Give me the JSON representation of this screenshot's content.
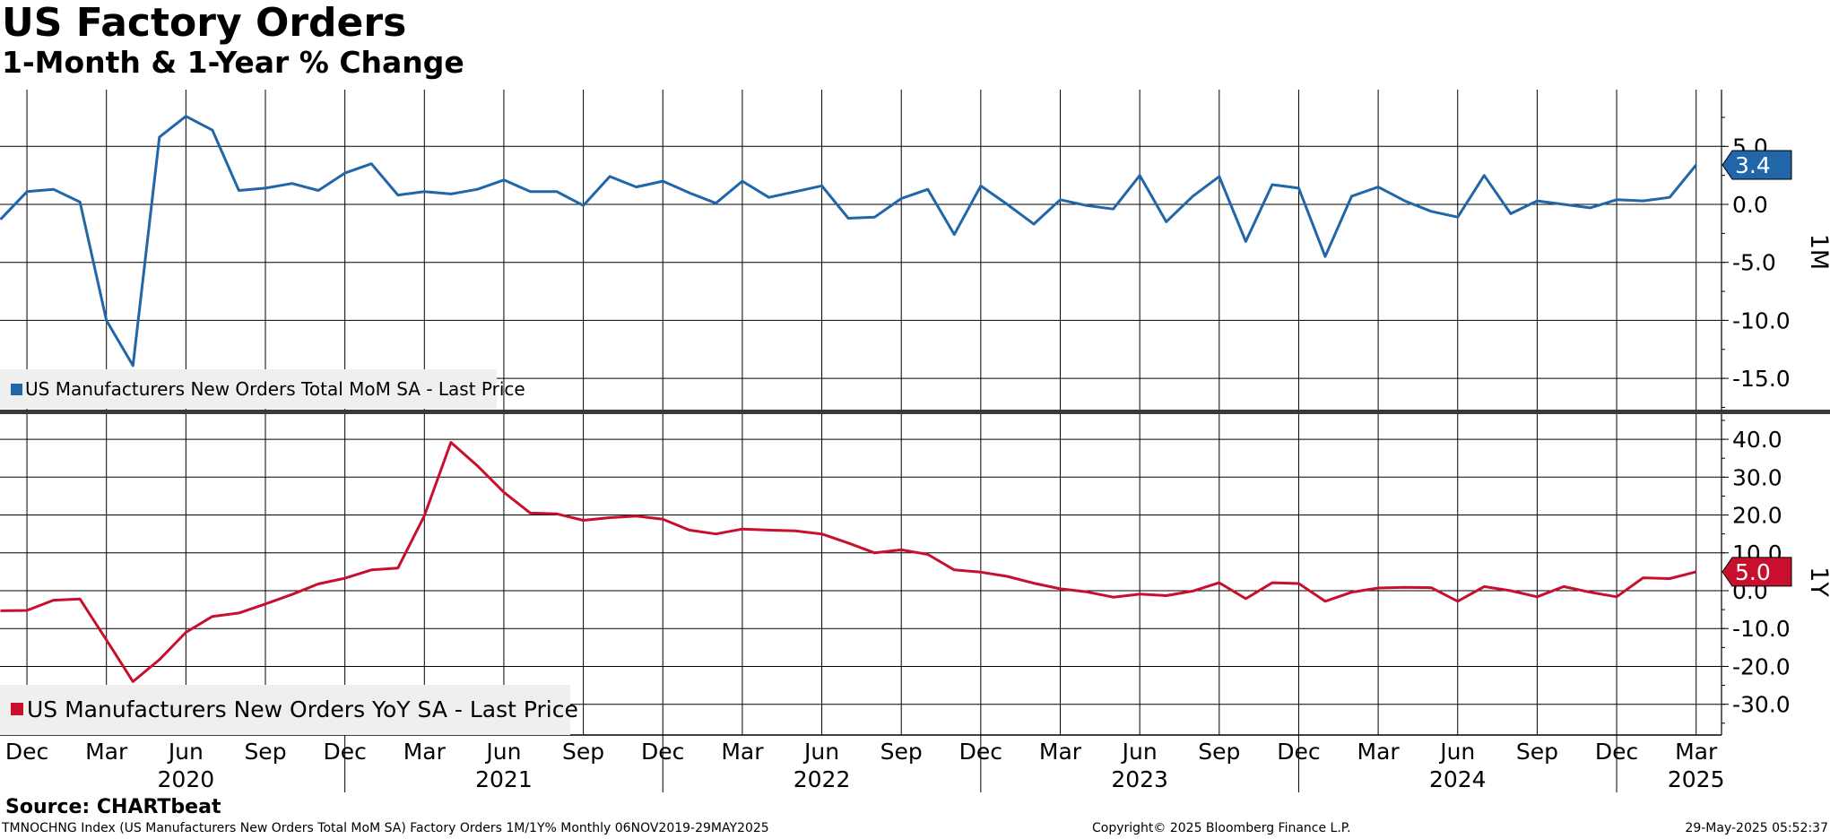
{
  "header": {
    "title": "US Factory Orders",
    "subtitle": "1-Month & 1-Year % Change"
  },
  "footer": {
    "source": "Source: CHARTbeat",
    "ticker_line": "TMNOCHNG Index (US Manufacturers New Orders Total MoM SA) Factory Orders 1M/1Y%  Monthly 06NOV2019-29MAY2025",
    "copyright": "Copyright© 2025 Bloomberg Finance L.P.",
    "timestamp": "29-May-2025 05:52:37"
  },
  "colors": {
    "mom_series": "#2066a8",
    "yoy_series": "#c8102e",
    "grid": "#000000",
    "legend_bg": "#efefef",
    "panel_divider": "#3a3a3a"
  },
  "chart_data": [
    {
      "type": "line",
      "panel": "top",
      "axis_label": "1M",
      "ylim": [
        -18,
        10
      ],
      "y_ticks": [
        5,
        0,
        -5,
        -10,
        -15
      ],
      "y_tick_labels": [
        "5.0",
        "0.0",
        "-5.0",
        "-10.0",
        "-15.0"
      ],
      "grid": true,
      "legend": "bottom-left",
      "series": [
        {
          "name": "US Manufacturers New Orders Total MoM SA - Last Price",
          "color": "#2066a8",
          "last_value_label": "3.4",
          "x": [
            "2019-11",
            "2019-12",
            "2020-01",
            "2020-02",
            "2020-03",
            "2020-04",
            "2020-05",
            "2020-06",
            "2020-07",
            "2020-08",
            "2020-09",
            "2020-10",
            "2020-11",
            "2020-12",
            "2021-01",
            "2021-02",
            "2021-03",
            "2021-04",
            "2021-05",
            "2021-06",
            "2021-07",
            "2021-08",
            "2021-09",
            "2021-10",
            "2021-11",
            "2021-12",
            "2022-01",
            "2022-02",
            "2022-03",
            "2022-04",
            "2022-05",
            "2022-06",
            "2022-07",
            "2022-08",
            "2022-09",
            "2022-10",
            "2022-11",
            "2022-12",
            "2023-01",
            "2023-02",
            "2023-03",
            "2023-04",
            "2023-05",
            "2023-06",
            "2023-07",
            "2023-08",
            "2023-09",
            "2023-10",
            "2023-11",
            "2023-12",
            "2024-01",
            "2024-02",
            "2024-03",
            "2024-04",
            "2024-05",
            "2024-06",
            "2024-07",
            "2024-08",
            "2024-09",
            "2024-10",
            "2024-11",
            "2024-12",
            "2025-01",
            "2025-02",
            "2025-03"
          ],
          "values": [
            -1.3,
            1.1,
            1.3,
            0.2,
            -10.0,
            -13.9,
            5.8,
            7.6,
            6.4,
            1.2,
            1.4,
            1.8,
            1.2,
            2.7,
            3.5,
            0.8,
            1.1,
            0.9,
            1.3,
            2.1,
            1.1,
            1.1,
            -0.1,
            2.4,
            1.5,
            2.0,
            1.0,
            0.1,
            2.0,
            0.6,
            1.1,
            1.6,
            -1.2,
            -1.1,
            0.5,
            1.3,
            -2.6,
            1.6,
            0.0,
            -1.7,
            0.4,
            -0.1,
            -0.4,
            2.5,
            -1.5,
            0.7,
            2.4,
            -3.2,
            1.7,
            1.4,
            -4.5,
            0.7,
            1.5,
            0.3,
            -0.6,
            -1.1,
            2.5,
            -0.8,
            0.3,
            0.0,
            -0.3,
            0.4,
            0.3,
            0.6,
            3.4
          ]
        }
      ]
    },
    {
      "type": "line",
      "panel": "bottom",
      "axis_label": "1Y",
      "ylim": [
        -38,
        44
      ],
      "y_ticks": [
        40,
        30,
        20,
        10,
        0,
        -10,
        -20,
        -30
      ],
      "y_tick_labels": [
        "40.0",
        "30.0",
        "20.0",
        "10.0",
        "0.0",
        "-10.0",
        "-20.0",
        "-30.0"
      ],
      "grid": true,
      "legend": "bottom-left",
      "series": [
        {
          "name": "US Manufacturers New Orders YoY SA - Last Price",
          "color": "#c8102e",
          "last_value_label": "5.0",
          "x": [
            "2019-11",
            "2019-12",
            "2020-01",
            "2020-02",
            "2020-03",
            "2020-04",
            "2020-05",
            "2020-06",
            "2020-07",
            "2020-08",
            "2020-09",
            "2020-10",
            "2020-11",
            "2020-12",
            "2021-01",
            "2021-02",
            "2021-03",
            "2021-04",
            "2021-05",
            "2021-06",
            "2021-07",
            "2021-08",
            "2021-09",
            "2021-10",
            "2021-11",
            "2021-12",
            "2022-01",
            "2022-02",
            "2022-03",
            "2022-04",
            "2022-05",
            "2022-06",
            "2022-07",
            "2022-08",
            "2022-09",
            "2022-10",
            "2022-11",
            "2022-12",
            "2023-01",
            "2023-02",
            "2023-03",
            "2023-04",
            "2023-05",
            "2023-06",
            "2023-07",
            "2023-08",
            "2023-09",
            "2023-10",
            "2023-11",
            "2023-12",
            "2024-01",
            "2024-02",
            "2024-03",
            "2024-04",
            "2024-05",
            "2024-06",
            "2024-07",
            "2024-08",
            "2024-09",
            "2024-10",
            "2024-11",
            "2024-12",
            "2025-01",
            "2025-02",
            "2025-03"
          ],
          "values": [
            -5.3,
            -5.2,
            -2.5,
            -2.2,
            -13.0,
            -24.0,
            -18.2,
            -11.0,
            -6.8,
            -5.9,
            -3.5,
            -1.0,
            1.8,
            3.3,
            5.5,
            6.0,
            19.8,
            39.2,
            33.0,
            26.0,
            20.5,
            20.3,
            18.6,
            19.3,
            19.7,
            18.9,
            16.0,
            15.0,
            16.3,
            16.0,
            15.8,
            15.0,
            12.6,
            10.0,
            10.8,
            9.6,
            5.5,
            4.9,
            3.8,
            2.0,
            0.5,
            -0.3,
            -1.7,
            -0.9,
            -1.3,
            -0.1,
            2.1,
            -2.1,
            2.1,
            1.9,
            -2.8,
            -0.4,
            0.7,
            0.9,
            0.8,
            -2.8,
            1.1,
            0.0,
            -1.6,
            1.1,
            -0.4,
            -1.6,
            3.4,
            3.2,
            5.0
          ]
        }
      ]
    }
  ],
  "x_axis": {
    "month_labels": [
      {
        "label": "Dec",
        "date": "2019-12"
      },
      {
        "label": "Mar",
        "date": "2020-03"
      },
      {
        "label": "Jun",
        "date": "2020-06"
      },
      {
        "label": "Sep",
        "date": "2020-09"
      },
      {
        "label": "Dec",
        "date": "2020-12"
      },
      {
        "label": "Mar",
        "date": "2021-03"
      },
      {
        "label": "Jun",
        "date": "2021-06"
      },
      {
        "label": "Sep",
        "date": "2021-09"
      },
      {
        "label": "Dec",
        "date": "2021-12"
      },
      {
        "label": "Mar",
        "date": "2022-03"
      },
      {
        "label": "Jun",
        "date": "2022-06"
      },
      {
        "label": "Sep",
        "date": "2022-09"
      },
      {
        "label": "Dec",
        "date": "2022-12"
      },
      {
        "label": "Mar",
        "date": "2023-03"
      },
      {
        "label": "Jun",
        "date": "2023-06"
      },
      {
        "label": "Sep",
        "date": "2023-09"
      },
      {
        "label": "Dec",
        "date": "2023-12"
      },
      {
        "label": "Mar",
        "date": "2024-03"
      },
      {
        "label": "Jun",
        "date": "2024-06"
      },
      {
        "label": "Sep",
        "date": "2024-09"
      },
      {
        "label": "Dec",
        "date": "2024-12"
      },
      {
        "label": "Mar",
        "date": "2025-03"
      }
    ],
    "year_labels": [
      {
        "label": "2020",
        "date": "2020-06"
      },
      {
        "label": "2021",
        "date": "2021-06"
      },
      {
        "label": "2022",
        "date": "2022-06"
      },
      {
        "label": "2023",
        "date": "2023-06"
      },
      {
        "label": "2024",
        "date": "2024-06"
      },
      {
        "label": "2025",
        "date": "2025-03"
      }
    ]
  }
}
